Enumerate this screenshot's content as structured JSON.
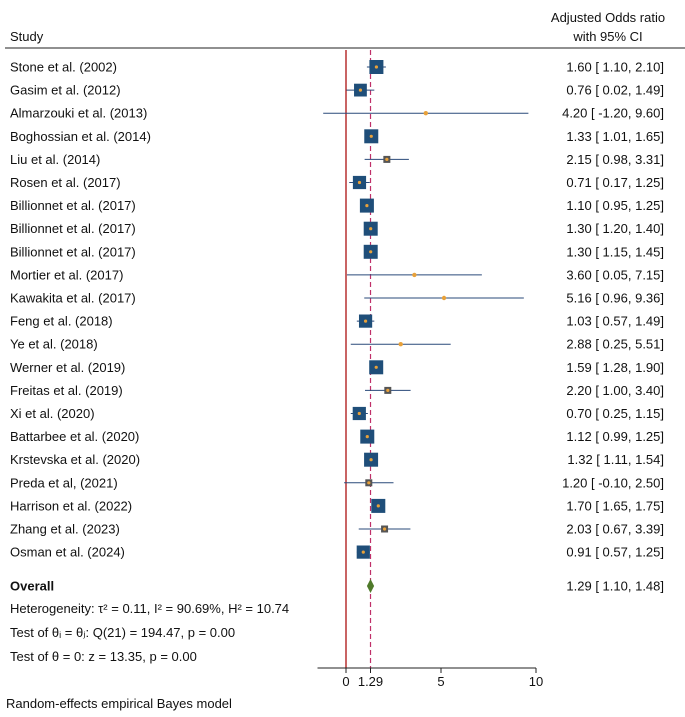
{
  "header": {
    "study": "Study",
    "or_line1": "Adjusted Odds ratio",
    "or_line2": "with 95% CI"
  },
  "footer": {
    "heterogeneity": "Heterogeneity: τ² = 0.11, I² = 90.69%, H² = 10.74",
    "test_equal": "Test of θᵢ = θⱼ: Q(21) = 194.47, p = 0.00",
    "test_zero": "Test of θ = 0: z = 13.35, p = 0.00",
    "model_note": "Random-effects empirical Bayes model"
  },
  "colors": {
    "box": "#1f4e79",
    "box_gray": "#555555",
    "point": "#e8a13a",
    "ci_line": "#2a4a7a",
    "null_line": "#b22222",
    "overall_line": "#c0306a",
    "diamond": "#4f7a2a"
  },
  "chart_data": {
    "type": "forest",
    "xlim": [
      -1.5,
      10
    ],
    "null_value": 0,
    "overall_reference": 1.29,
    "ticks": [
      {
        "value": 0,
        "label": "0"
      },
      {
        "value": 1.29,
        "label": "1.29"
      },
      {
        "value": 5,
        "label": "5"
      },
      {
        "value": 10,
        "label": "10"
      }
    ],
    "studies": [
      {
        "name": "Stone et al. (2002)",
        "or": 1.6,
        "lo": 1.1,
        "hi": 2.1,
        "label": "1.60 [  1.10,  2.10]",
        "w": 1.0,
        "style": "box"
      },
      {
        "name": "Gasim et al. (2012)",
        "or": 0.76,
        "lo": 0.02,
        "hi": 1.49,
        "label": "0.76 [  0.02,  1.49]",
        "w": 0.85,
        "style": "box"
      },
      {
        "name": "Almarzouki et al. (2013)",
        "or": 4.2,
        "lo": -1.2,
        "hi": 9.6,
        "label": "4.20 [ -1.20,  9.60]",
        "w": 0.1,
        "style": "point"
      },
      {
        "name": "Boghossian et al. (2014)",
        "or": 1.33,
        "lo": 1.01,
        "hi": 1.65,
        "label": "1.33 [  1.01,  1.65]",
        "w": 1.0,
        "style": "box"
      },
      {
        "name": "Liu et al. (2014)",
        "or": 2.15,
        "lo": 0.98,
        "hi": 3.31,
        "label": "2.15 [  0.98,  3.31]",
        "w": 0.6,
        "style": "gray"
      },
      {
        "name": "Rosen et al. (2017)",
        "or": 0.71,
        "lo": 0.17,
        "hi": 1.25,
        "label": "0.71 [  0.17,  1.25]",
        "w": 0.9,
        "style": "box"
      },
      {
        "name": "Billionnet et al. (2017)",
        "or": 1.1,
        "lo": 0.95,
        "hi": 1.25,
        "label": "1.10 [  0.95,  1.25]",
        "w": 1.0,
        "style": "box"
      },
      {
        "name": "Billionnet et al. (2017)",
        "or": 1.3,
        "lo": 1.2,
        "hi": 1.4,
        "label": "1.30 [  1.20,  1.40]",
        "w": 1.0,
        "style": "box"
      },
      {
        "name": "Billionnet et al. (2017)",
        "or": 1.3,
        "lo": 1.15,
        "hi": 1.45,
        "label": "1.30 [  1.15,  1.45]",
        "w": 1.0,
        "style": "box"
      },
      {
        "name": "Mortier et al. (2017)",
        "or": 3.6,
        "lo": 0.05,
        "hi": 7.15,
        "label": "3.60 [  0.05,  7.15]",
        "w": 0.1,
        "style": "point"
      },
      {
        "name": "Kawakita et al. (2017)",
        "or": 5.16,
        "lo": 0.96,
        "hi": 9.36,
        "label": "5.16 [  0.96,  9.36]",
        "w": 0.1,
        "style": "point"
      },
      {
        "name": "Feng et al. (2018)",
        "or": 1.03,
        "lo": 0.57,
        "hi": 1.49,
        "label": "1.03 [  0.57,  1.49]",
        "w": 0.9,
        "style": "box"
      },
      {
        "name": "Ye et al. (2018)",
        "or": 2.88,
        "lo": 0.25,
        "hi": 5.51,
        "label": "2.88 [  0.25,  5.51]",
        "w": 0.15,
        "style": "point"
      },
      {
        "name": "Werner et al. (2019)",
        "or": 1.59,
        "lo": 1.28,
        "hi": 1.9,
        "label": "1.59 [  1.28,  1.90]",
        "w": 1.0,
        "style": "box"
      },
      {
        "name": "Freitas et al. (2019)",
        "or": 2.2,
        "lo": 1.0,
        "hi": 3.4,
        "label": "2.20 [  1.00,  3.40]",
        "w": 0.6,
        "style": "gray"
      },
      {
        "name": "Xi et al. (2020)",
        "or": 0.7,
        "lo": 0.25,
        "hi": 1.15,
        "label": "0.70 [  0.25,  1.15]",
        "w": 0.9,
        "style": "box"
      },
      {
        "name": "Battarbee et al. (2020)",
        "or": 1.12,
        "lo": 0.99,
        "hi": 1.25,
        "label": "1.12 [  0.99,  1.25]",
        "w": 1.0,
        "style": "box"
      },
      {
        "name": "Krstevska et al. (2020)",
        "or": 1.32,
        "lo": 1.11,
        "hi": 1.54,
        "label": "1.32 [  1.11,  1.54]",
        "w": 1.0,
        "style": "box"
      },
      {
        "name": "Preda et al, (2021)",
        "or": 1.2,
        "lo": -0.1,
        "hi": 2.5,
        "label": "1.20 [ -0.10,  2.50]",
        "w": 0.5,
        "style": "gray"
      },
      {
        "name": "Harrison et al. (2022)",
        "or": 1.7,
        "lo": 1.65,
        "hi": 1.75,
        "label": "1.70 [  1.65,  1.75]",
        "w": 1.0,
        "style": "box"
      },
      {
        "name": "Zhang et al. (2023)",
        "or": 2.03,
        "lo": 0.67,
        "hi": 3.39,
        "label": "2.03 [  0.67,  3.39]",
        "w": 0.5,
        "style": "gray"
      },
      {
        "name": "Osman et al. (2024)",
        "or": 0.91,
        "lo": 0.57,
        "hi": 1.25,
        "label": "0.91 [  0.57,  1.25]",
        "w": 0.9,
        "style": "box"
      }
    ],
    "overall": {
      "name": "Overall",
      "or": 1.29,
      "lo": 1.1,
      "hi": 1.48,
      "label": "1.29 [  1.10,  1.48]"
    }
  }
}
